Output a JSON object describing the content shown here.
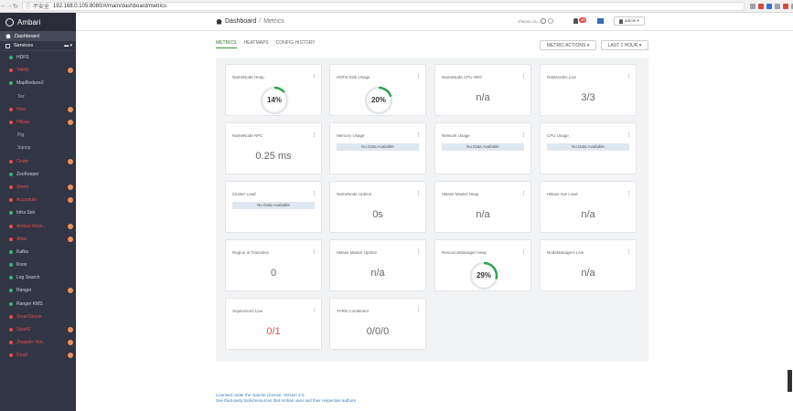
{
  "browser": {
    "security": "不安全",
    "url": "192.168.0.105:8080/#/main/dashboard/metrics"
  },
  "sidebar": {
    "brand": "Ambari",
    "dashboard": "Dashboard",
    "services_label": "Services",
    "services_ctrl": "▬ ▾",
    "items": [
      {
        "name": "HDFS",
        "status": "green",
        "alert": false,
        "child": false
      },
      {
        "name": "YARN",
        "status": "red",
        "alert": true,
        "child": false
      },
      {
        "name": "MapReduce2",
        "status": "green",
        "alert": false,
        "child": false
      },
      {
        "name": "Tez",
        "status": "none",
        "alert": false,
        "child": true
      },
      {
        "name": "Hive",
        "status": "red",
        "alert": true,
        "child": false
      },
      {
        "name": "HBase",
        "status": "red",
        "alert": true,
        "child": false
      },
      {
        "name": "Pig",
        "status": "none",
        "alert": false,
        "child": true
      },
      {
        "name": "Sqoop",
        "status": "none",
        "alert": false,
        "child": true
      },
      {
        "name": "Oozie",
        "status": "red",
        "alert": true,
        "child": false
      },
      {
        "name": "ZooKeeper",
        "status": "green",
        "alert": false,
        "child": false
      },
      {
        "name": "Storm",
        "status": "red",
        "alert": true,
        "child": false
      },
      {
        "name": "Accumulo",
        "status": "red",
        "alert": true,
        "child": false
      },
      {
        "name": "Infra Solr",
        "status": "green",
        "alert": false,
        "child": false
      },
      {
        "name": "Ambari Metri...",
        "status": "red",
        "alert": true,
        "child": false
      },
      {
        "name": "Atlas",
        "status": "red",
        "alert": true,
        "child": false
      },
      {
        "name": "Kafka",
        "status": "green",
        "alert": false,
        "child": false
      },
      {
        "name": "Knox",
        "status": "green",
        "alert": false,
        "child": false
      },
      {
        "name": "Log Search",
        "status": "green",
        "alert": false,
        "child": false
      },
      {
        "name": "Ranger",
        "status": "green",
        "alert": true,
        "child": false
      },
      {
        "name": "Ranger KMS",
        "status": "green",
        "alert": false,
        "child": false
      },
      {
        "name": "SmartSense",
        "status": "red",
        "alert": false,
        "child": false
      },
      {
        "name": "Spark2",
        "status": "red",
        "alert": true,
        "child": false
      },
      {
        "name": "Zeppelin Not...",
        "status": "red",
        "alert": true,
        "child": false
      },
      {
        "name": "Druid",
        "status": "red",
        "alert": true,
        "child": false
      }
    ]
  },
  "header": {
    "crumb_root": "Dashboard",
    "crumb_sep": "/",
    "crumb_current": "Metrics",
    "cluster": "chaoxu.clu...",
    "alerts_count": "45",
    "user": "admin ▾"
  },
  "tabs": [
    {
      "label": "METRICS",
      "active": true
    },
    {
      "label": "HEATMAPS",
      "active": false
    },
    {
      "label": "CONFIG HISTORY",
      "active": false
    }
  ],
  "actions": {
    "metric_actions": "METRIC ACTIONS ▾",
    "time_range": "LAST 1 HOUR ▾"
  },
  "widgets": [
    {
      "title": "NameNode Heap",
      "kind": "gauge",
      "value": "14%",
      "percent": 14
    },
    {
      "title": "HDFS Disk Usage",
      "kind": "gauge",
      "value": "20%",
      "percent": 20
    },
    {
      "title": "NameNode CPU WIO",
      "kind": "text",
      "value": "n/a"
    },
    {
      "title": "DataNodes Live",
      "kind": "text",
      "value": "3/3"
    },
    {
      "title": "NameNode RPC",
      "kind": "text",
      "value": "0.25 ms"
    },
    {
      "title": "Memory Usage",
      "kind": "nodata",
      "value": "No Data Available"
    },
    {
      "title": "Network Usage",
      "kind": "nodata",
      "value": "No Data Available"
    },
    {
      "title": "CPU Usage",
      "kind": "nodata",
      "value": "No Data Available"
    },
    {
      "title": "Cluster Load",
      "kind": "nodata",
      "value": "No Data Available"
    },
    {
      "title": "NameNode Uptime",
      "kind": "text",
      "value": "0s"
    },
    {
      "title": "HBase Master Heap",
      "kind": "text",
      "value": "n/a"
    },
    {
      "title": "HBase Ave Load",
      "kind": "text",
      "value": "n/a"
    },
    {
      "title": "Region In Transition",
      "kind": "text",
      "value": "0"
    },
    {
      "title": "HBase Master Uptime",
      "kind": "text",
      "value": "n/a"
    },
    {
      "title": "ResourceManager Heap",
      "kind": "gauge",
      "value": "29%",
      "percent": 29
    },
    {
      "title": "NodeManagers Live",
      "kind": "text",
      "value": "n/a"
    },
    {
      "title": "Supervisors Live",
      "kind": "text",
      "value": "0/1",
      "alert": true
    },
    {
      "title": "YARN Containers",
      "kind": "text",
      "value": "0/0/0"
    }
  ],
  "footer": {
    "line1": "Licensed under the Apache License, Version 2.0.",
    "line2": "See third-party tools/resources that Ambari uses and their respective authors"
  },
  "colors": {
    "sidebar_bg": "#323544",
    "status_green": "#3cb371",
    "status_red": "#e0504f",
    "gauge_green": "#2ea44f"
  }
}
